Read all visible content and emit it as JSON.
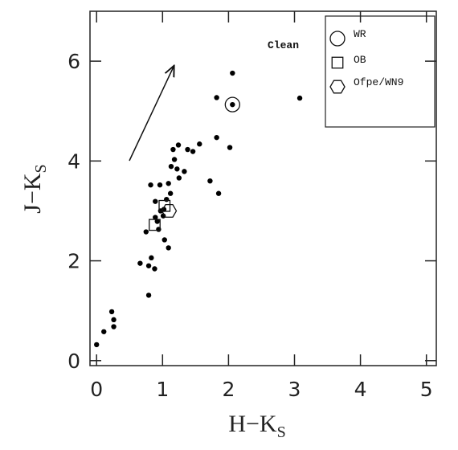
{
  "chart_data": {
    "type": "scatter",
    "annotation": "Clean",
    "xlabel": {
      "main": "H−K",
      "sub": "S"
    },
    "ylabel": {
      "main": "J−K",
      "sub": "S"
    },
    "xlim": [
      -0.1,
      5.15
    ],
    "ylim": [
      -0.1,
      7.0
    ],
    "xticks": [
      0,
      1,
      2,
      3,
      4,
      5
    ],
    "yticks": [
      0,
      2,
      4,
      6
    ],
    "points": {
      "color": "#000000",
      "x": [
        0,
        0.11,
        0.23,
        0.26,
        0.26,
        0.66,
        0.79,
        0.83,
        0.88,
        0.79,
        0.75,
        0.82,
        0.96,
        0.89,
        0.89,
        0.94,
        0.97,
        1.02,
        1.03,
        1.09,
        1.06,
        1.09,
        1.12,
        1.13,
        1.18,
        1.16,
        1.24,
        1.25,
        1.33,
        1.22,
        1.38,
        1.46,
        1.56,
        1.72,
        1.85,
        1.82,
        1.82,
        2.02,
        2.06,
        2.06,
        3.08,
        0.92,
        1.01
      ],
      "values": [
        0.32,
        0.58,
        0.98,
        0.82,
        0.68,
        1.95,
        1.9,
        2.06,
        1.84,
        1.31,
        2.58,
        3.52,
        3.52,
        3.19,
        2.87,
        2.63,
        3.0,
        3.03,
        2.42,
        2.26,
        3.23,
        3.55,
        3.35,
        3.89,
        4.03,
        4.23,
        4.32,
        3.66,
        3.79,
        3.84,
        4.23,
        4.19,
        4.34,
        3.6,
        3.35,
        5.27,
        4.47,
        4.27,
        5.76,
        5.13,
        5.26,
        2.79,
        2.9
      ]
    },
    "series": [
      {
        "name": "WR",
        "marker": "circle",
        "x": [
          2.06
        ],
        "values": [
          5.13
        ]
      },
      {
        "name": "OB",
        "marker": "square",
        "x": [
          0.88,
          1.03
        ],
        "values": [
          2.72,
          3.1
        ]
      },
      {
        "name": "Ofpe/WN9",
        "marker": "hexagon",
        "x": [
          1.1
        ],
        "values": [
          3.0
        ]
      }
    ]
  }
}
